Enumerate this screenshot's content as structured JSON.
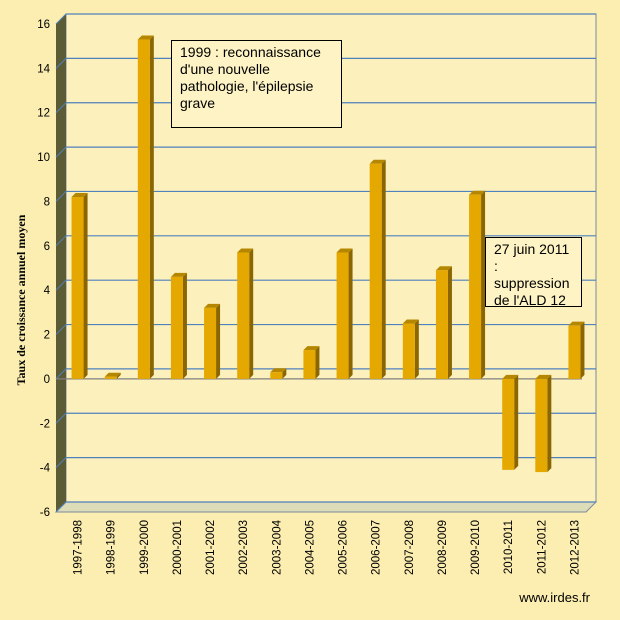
{
  "chart_data": {
    "type": "bar",
    "ylabel": "Taux de croissance  annuel moyen",
    "ylim": [
      -6,
      16
    ],
    "yticks": [
      -6,
      -4,
      -2,
      0,
      2,
      4,
      6,
      8,
      10,
      12,
      14,
      16
    ],
    "grid": true,
    "categories": [
      "1997-1998",
      "1998-1999",
      "1999-2000",
      "2000-2001",
      "2001-2002",
      "2002-2003",
      "2003-2004",
      "2004-2005",
      "2005-2006",
      "2006-2007",
      "2007-2008",
      "2008-2009",
      "2009-2010",
      "2010-2011",
      "2011-2012",
      "2012-2013"
    ],
    "values": [
      8.2,
      0.1,
      15.3,
      4.6,
      3.2,
      5.7,
      0.3,
      1.3,
      5.7,
      9.7,
      2.5,
      4.9,
      8.3,
      -4.1,
      -4.2,
      2.4
    ],
    "bar_color": "#e5a800",
    "annotations": [
      "1999 : reconnaissance d'une nouvelle pathologie, l'épilepsie grave",
      "27 juin 2011 : suppression de l'ALD 12"
    ]
  },
  "source": "www.irdes.fr"
}
